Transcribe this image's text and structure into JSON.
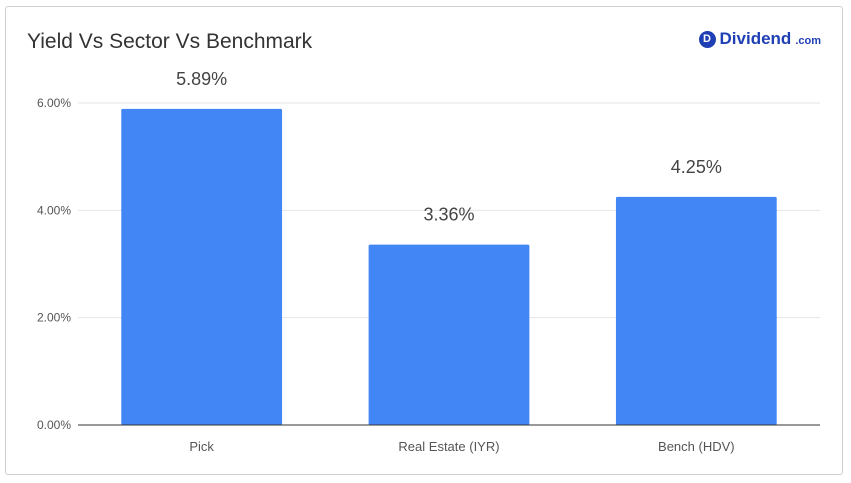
{
  "brand": {
    "badge": "D",
    "name": "Dividend",
    "tld": ".com"
  },
  "chart_data": {
    "type": "bar",
    "title": "Yield Vs Sector Vs Benchmark",
    "categories": [
      "Pick",
      "Real Estate (IYR)",
      "Bench (HDV)"
    ],
    "values": [
      5.89,
      3.36,
      4.25
    ],
    "data_labels": [
      "5.89%",
      "3.36%",
      "4.25%"
    ],
    "yticks": [
      0,
      2,
      4,
      6
    ],
    "ytick_labels": [
      "0.00%",
      "2.00%",
      "4.00%",
      "6.00%"
    ],
    "ylim": [
      0,
      6
    ],
    "xlabel": "",
    "ylabel": "",
    "grid": true,
    "colors": {
      "bar": "#4285f4",
      "grid": "#e6e6e6",
      "axis": "#333333"
    }
  }
}
